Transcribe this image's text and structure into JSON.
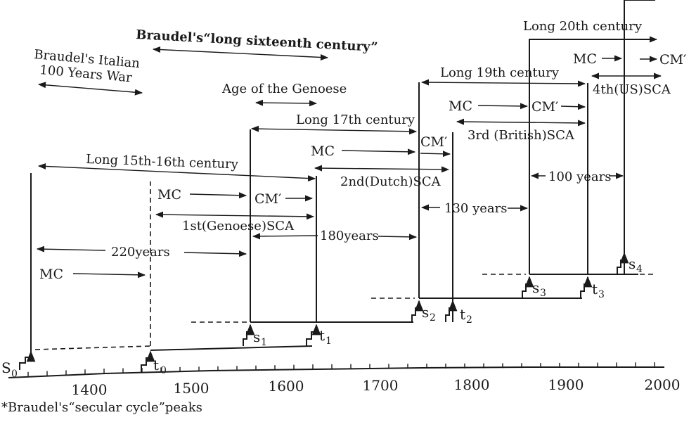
{
  "eras": {
    "italian_war": [
      "Braudel's Italian",
      "100 Years War"
    ],
    "long_16th": "Braudel's“long sixteenth century”",
    "genoese_age": "Age of the Genoese",
    "long_15_16": "Long 15th-16th century",
    "long_17": "Long 17th century",
    "long_19": "Long 19th century",
    "long_20": "Long 20th century"
  },
  "phases": {
    "mc": "MC",
    "cm": "CM′"
  },
  "cycles": {
    "sca1": "1st(Genoese)SCA",
    "sca2": "2nd(Dutch)SCA",
    "sca3": "3rd (British)SCA",
    "sca4": "4th(US)SCA"
  },
  "spans": {
    "years_220": "220years",
    "years_180": "180years",
    "years_130": "130 years",
    "years_100": "100 years"
  },
  "markers": {
    "s0": "S",
    "s0_sub": "0",
    "t0": "t",
    "t0_sub": "0",
    "s1": "s",
    "s1_sub": "1",
    "t1": "t",
    "t1_sub": "1",
    "s2": "s",
    "s2_sub": "2",
    "t2": "t",
    "t2_sub": "2",
    "s3": "s",
    "s3_sub": "3",
    "t3": "t",
    "t3_sub": "3",
    "s4": "s",
    "s4_sub": "4"
  },
  "axis": {
    "ticks": [
      "1400",
      "1500",
      "1600",
      "1700",
      "1800",
      "1900",
      "2000"
    ]
  },
  "footnote": "*Braudel's“secular cycle”peaks"
}
